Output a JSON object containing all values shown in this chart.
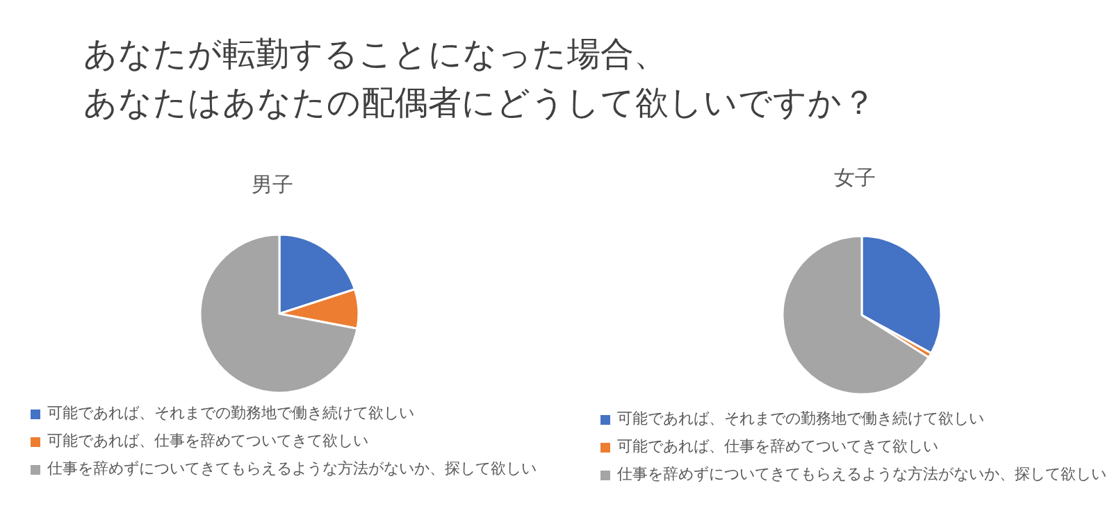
{
  "chart_data": [
    {
      "type": "pie",
      "title": "あなたが転勤することになった場合、あなたはあなたの配偶者にどうして欲しいですか？",
      "subtitle": "男子",
      "categories": [
        "可能であれば、それまでの勤務地で働き続けて欲しい",
        "可能であれば、仕事を辞めてついてきて欲しい",
        "仕事を辞めずについてきてもらえるような方法がないか、探して欲しい"
      ],
      "values": [
        20,
        8,
        72
      ],
      "colors": [
        "#4472c4",
        "#ed7d31",
        "#a5a5a5"
      ],
      "legend": "bottom"
    },
    {
      "type": "pie",
      "subtitle": "女子",
      "categories": [
        "可能であれば、それまでの勤務地で働き続けて欲しい",
        "可能であれば、仕事を辞めてついてきて欲しい",
        "仕事を辞めずについてきてもらえるような方法がないか、探して欲しい"
      ],
      "values": [
        33,
        1,
        66
      ],
      "colors": [
        "#4472c4",
        "#ed7d31",
        "#a5a5a5"
      ],
      "legend": "bottom"
    }
  ]
}
